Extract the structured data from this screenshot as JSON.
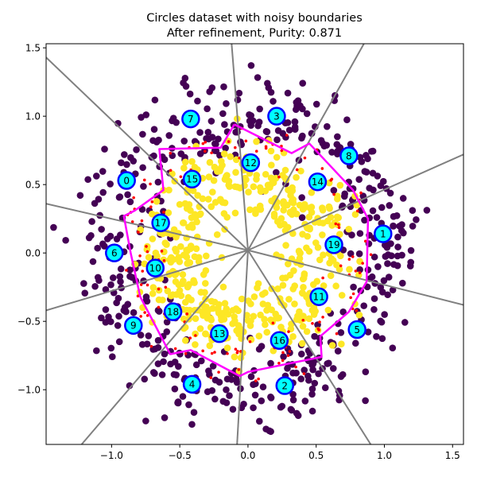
{
  "chart_data": {
    "type": "scatter",
    "title": "Circles dataset with noisy boundaries",
    "subtitle": "After refinement, Purity: 0.871",
    "xlabel": "",
    "ylabel": "",
    "xlim": [
      -1.48,
      1.58
    ],
    "ylim": [
      -1.4,
      1.53
    ],
    "x_ticks": [
      "−1.0",
      "−0.5",
      "0.0",
      "0.5",
      "1.0",
      "1.5"
    ],
    "y_ticks": [
      "−1.0",
      "−0.5",
      "0.0",
      "0.5",
      "1.0",
      "1.5"
    ],
    "x_tick_values": [
      -1.0,
      -0.5,
      0.0,
      0.5,
      1.0,
      1.5
    ],
    "y_tick_values": [
      -1.0,
      -0.5,
      0.0,
      0.5,
      1.0,
      1.5
    ],
    "grid": false,
    "colors": {
      "outer_class": "#440154",
      "inner_class": "#fde725",
      "misclassified": "#ff0000",
      "boundary_lines": "#808080",
      "decision_boundary": "#ff00ff",
      "centroid_fill": "#00ffff",
      "centroid_edge": "#0000ff"
    },
    "centroids": [
      {
        "label": "0",
        "x": -0.89,
        "y": 0.53
      },
      {
        "label": "1",
        "x": 0.99,
        "y": 0.14
      },
      {
        "label": "2",
        "x": 0.27,
        "y": -0.97
      },
      {
        "label": "3",
        "x": 0.21,
        "y": 1.0
      },
      {
        "label": "4",
        "x": -0.41,
        "y": -0.96
      },
      {
        "label": "5",
        "x": 0.8,
        "y": -0.56
      },
      {
        "label": "6",
        "x": -0.98,
        "y": 0.0
      },
      {
        "label": "7",
        "x": -0.42,
        "y": 0.98
      },
      {
        "label": "8",
        "x": 0.74,
        "y": 0.71
      },
      {
        "label": "9",
        "x": -0.84,
        "y": -0.53
      },
      {
        "label": "10",
        "x": -0.68,
        "y": -0.11
      },
      {
        "label": "11",
        "x": 0.52,
        "y": -0.32
      },
      {
        "label": "12",
        "x": 0.02,
        "y": 0.66
      },
      {
        "label": "13",
        "x": -0.21,
        "y": -0.59
      },
      {
        "label": "14",
        "x": 0.51,
        "y": 0.52
      },
      {
        "label": "15",
        "x": -0.41,
        "y": 0.54
      },
      {
        "label": "16",
        "x": 0.23,
        "y": -0.64
      },
      {
        "label": "17",
        "x": -0.64,
        "y": 0.22
      },
      {
        "label": "18",
        "x": -0.55,
        "y": -0.43
      },
      {
        "label": "19",
        "x": 0.63,
        "y": 0.06
      }
    ],
    "decision_boundary": [
      [
        -0.1,
        0.94
      ],
      [
        0.32,
        0.73
      ],
      [
        0.45,
        0.8
      ],
      [
        0.77,
        0.46
      ],
      [
        0.88,
        0.25
      ],
      [
        0.87,
        -0.21
      ],
      [
        0.74,
        -0.43
      ],
      [
        0.53,
        -0.61
      ],
      [
        0.54,
        -0.76
      ],
      [
        0.0,
        -0.87
      ],
      [
        -0.06,
        -0.9
      ],
      [
        -0.42,
        -0.71
      ],
      [
        -0.57,
        -0.74
      ],
      [
        -0.79,
        -0.32
      ],
      [
        -0.86,
        0.0
      ],
      [
        -0.91,
        0.27
      ],
      [
        -0.83,
        0.31
      ],
      [
        -0.62,
        0.46
      ],
      [
        -0.65,
        0.76
      ],
      [
        -0.2,
        0.77
      ],
      [
        -0.1,
        0.94
      ]
    ],
    "boundary_lines": [
      [
        [
          0.0,
          0.02
        ],
        [
          -1.48,
          1.43
        ]
      ],
      [
        [
          0.0,
          0.02
        ],
        [
          -1.48,
          0.36
        ]
      ],
      [
        [
          0.0,
          0.02
        ],
        [
          -1.48,
          -0.42
        ]
      ],
      [
        [
          0.0,
          0.02
        ],
        [
          -1.22,
          -1.4
        ]
      ],
      [
        [
          0.0,
          0.02
        ],
        [
          -0.08,
          -1.4
        ]
      ],
      [
        [
          0.0,
          0.02
        ],
        [
          0.9,
          -1.4
        ]
      ],
      [
        [
          0.0,
          0.02
        ],
        [
          1.58,
          -0.38
        ]
      ],
      [
        [
          0.0,
          0.02
        ],
        [
          1.58,
          0.72
        ]
      ],
      [
        [
          0.0,
          0.02
        ],
        [
          0.85,
          1.53
        ]
      ],
      [
        [
          0.0,
          0.02
        ],
        [
          -0.12,
          1.53
        ]
      ]
    ],
    "class_outer": {
      "ring_radius": 1.0,
      "noise": 0.16,
      "point_count": 520
    },
    "class_inner": {
      "ring_radius": 0.55,
      "noise": 0.15,
      "point_count": 480
    },
    "misclassified_point_count": 130
  }
}
